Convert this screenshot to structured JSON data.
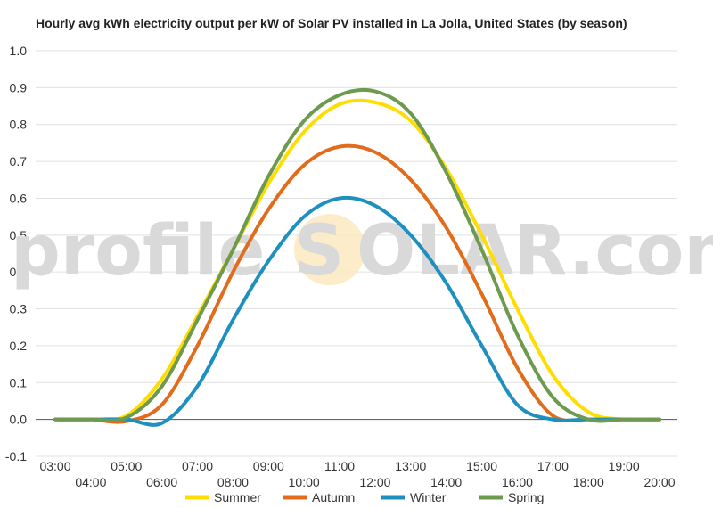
{
  "watermark": {
    "part1": "profile",
    "sun_letter": "S",
    "part2": "OLAR.com"
  },
  "chart_data": {
    "type": "line",
    "title": "Hourly avg kWh electricity output per kW of Solar PV installed in La Jolla, United States (by season)",
    "xlabel": "",
    "ylabel": "",
    "ylim": [
      -0.1,
      1.0
    ],
    "y_ticks": [
      "-0.1",
      "0.0",
      "0.1",
      "0.2",
      "0.3",
      "0.4",
      "0.5",
      "0.6",
      "0.7",
      "0.8",
      "0.9",
      "1.0"
    ],
    "x": [
      "03:00",
      "04:00",
      "05:00",
      "06:00",
      "07:00",
      "08:00",
      "09:00",
      "10:00",
      "11:00",
      "12:00",
      "13:00",
      "14:00",
      "15:00",
      "16:00",
      "17:00",
      "18:00",
      "19:00",
      "20:00"
    ],
    "grid": true,
    "legend_position": "bottom",
    "series": [
      {
        "name": "Summer",
        "color": "#FFDD00",
        "values": [
          0.0,
          0.0,
          0.01,
          0.11,
          0.28,
          0.46,
          0.64,
          0.78,
          0.855,
          0.86,
          0.81,
          0.68,
          0.5,
          0.3,
          0.12,
          0.02,
          0.0,
          0.0
        ]
      },
      {
        "name": "Autumn",
        "color": "#E06C1C",
        "values": [
          0.0,
          0.0,
          -0.005,
          0.04,
          0.2,
          0.4,
          0.57,
          0.69,
          0.74,
          0.725,
          0.65,
          0.52,
          0.34,
          0.14,
          0.01,
          0.0,
          0.0,
          0.0
        ]
      },
      {
        "name": "Winter",
        "color": "#1E90C0",
        "values": [
          0.0,
          0.0,
          0.0,
          -0.01,
          0.09,
          0.27,
          0.43,
          0.55,
          0.6,
          0.58,
          0.5,
          0.37,
          0.2,
          0.04,
          0.0,
          0.0,
          0.0,
          0.0
        ]
      },
      {
        "name": "Spring",
        "color": "#6E9A50",
        "values": [
          0.0,
          0.0,
          0.005,
          0.09,
          0.27,
          0.46,
          0.66,
          0.81,
          0.88,
          0.89,
          0.83,
          0.67,
          0.46,
          0.23,
          0.06,
          0.0,
          0.0,
          0.0
        ]
      }
    ]
  }
}
